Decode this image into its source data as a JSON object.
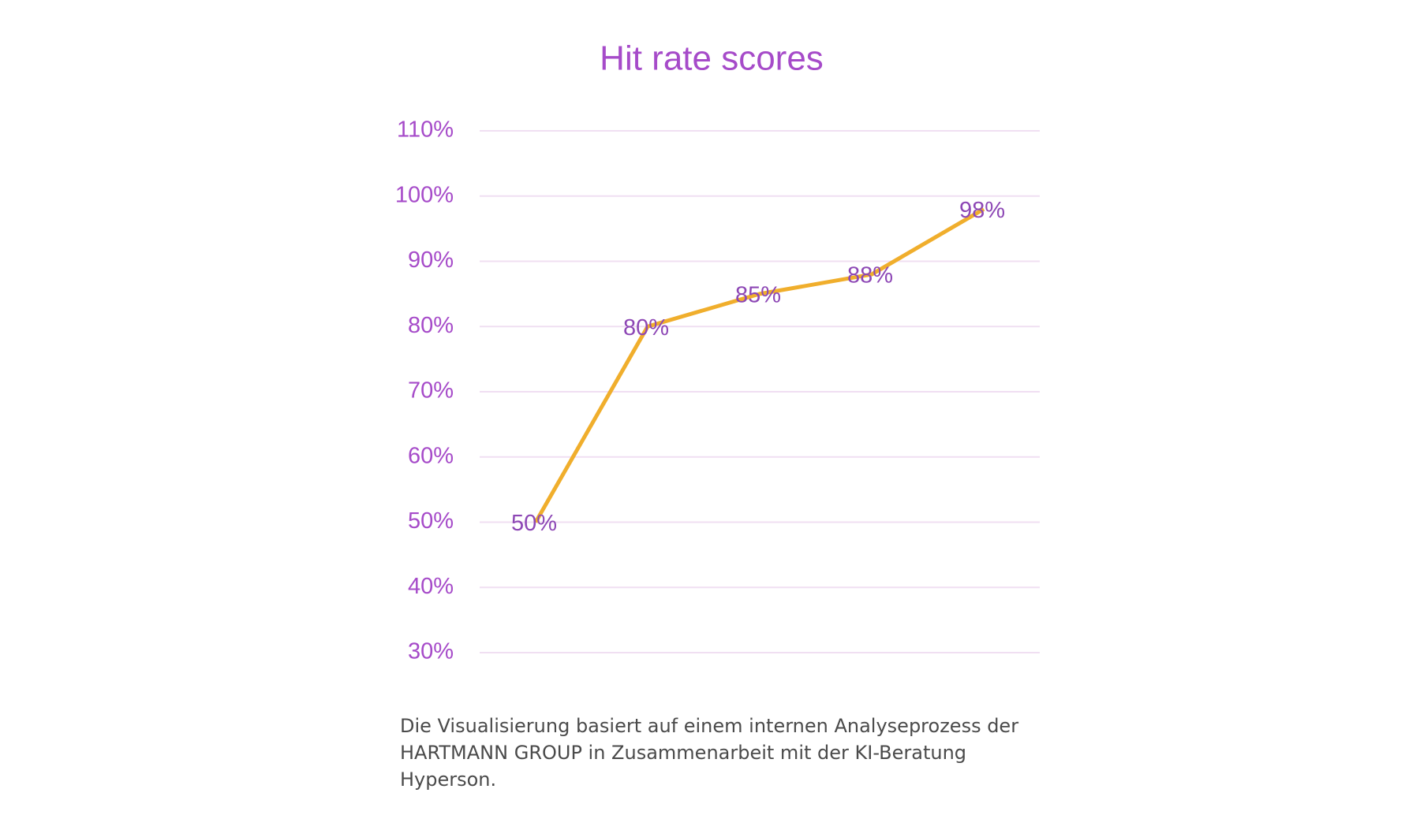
{
  "chart_data": {
    "type": "line",
    "title": "Hit rate scores",
    "series": [
      {
        "color": "#f0ae2c",
        "values": [
          50,
          80,
          85,
          88,
          98
        ],
        "value_labels": [
          "50%",
          "80%",
          "85%",
          "88%",
          "98%"
        ]
      }
    ],
    "ylim": [
      30,
      110
    ],
    "yticks": [
      {
        "value": 30,
        "label": "30%"
      },
      {
        "value": 40,
        "label": "40%"
      },
      {
        "value": 50,
        "label": "50%"
      },
      {
        "value": 60,
        "label": "60%"
      },
      {
        "value": 70,
        "label": "70%"
      },
      {
        "value": 80,
        "label": "80%"
      },
      {
        "value": 90,
        "label": "90%"
      },
      {
        "value": 100,
        "label": "100%"
      },
      {
        "value": 110,
        "label": "110%"
      }
    ],
    "grid": true
  },
  "footnote": {
    "lines": [
      "Die Visualisierung basiert auf einem internen Analyseprozess der",
      "HARTMANN GROUP in Zusammenarbeit mit der KI-Beratung",
      "Hyperson."
    ]
  }
}
